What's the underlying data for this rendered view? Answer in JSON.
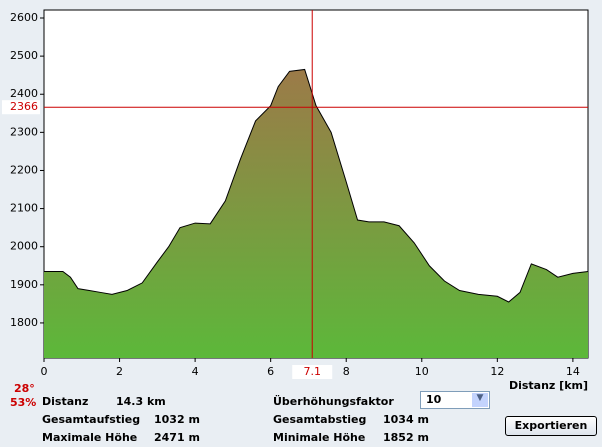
{
  "chart_data": {
    "type": "area",
    "x_label": "Distanz [km]",
    "x": [
      0,
      0.5,
      0.7,
      0.9,
      1.2,
      1.5,
      1.8,
      2.2,
      2.6,
      3.0,
      3.3,
      3.6,
      4.0,
      4.4,
      4.8,
      5.2,
      5.6,
      6.0,
      6.2,
      6.5,
      6.9,
      7.2,
      7.6,
      8.0,
      8.3,
      8.6,
      9.0,
      9.4,
      9.8,
      10.2,
      10.6,
      11.0,
      11.5,
      12.0,
      12.3,
      12.6,
      12.9,
      13.3,
      13.6,
      14.0,
      14.4
    ],
    "values": [
      1935,
      1935,
      1920,
      1890,
      1885,
      1880,
      1875,
      1885,
      1905,
      1960,
      2000,
      2050,
      2062,
      2060,
      2120,
      2230,
      2330,
      2370,
      2420,
      2460,
      2465,
      2370,
      2300,
      2170,
      2070,
      2065,
      2065,
      2055,
      2010,
      1950,
      1910,
      1885,
      1875,
      1870,
      1855,
      1880,
      1955,
      1940,
      1920,
      1930,
      1935
    ],
    "xlim": [
      0,
      14.4
    ],
    "ylim": [
      1708,
      2621
    ],
    "xticks": [
      0,
      2,
      4,
      6,
      8,
      10,
      12,
      14
    ],
    "yticks": [
      1800,
      1900,
      2000,
      2100,
      2200,
      2300,
      2400,
      2500,
      2600
    ],
    "color_top": "#9c7a48",
    "color_bottom": "#5cb83a",
    "cursor": {
      "x": 7.1,
      "y": 2366,
      "color": "#cc0000"
    }
  },
  "panel": {
    "slope": "28°",
    "grade": "53%",
    "stats": [
      [
        "Distanz",
        "14.3 km"
      ],
      [
        "Gesamtaufstieg",
        "1032 m"
      ],
      [
        "Maximale Höhe",
        "2471 m"
      ],
      [
        "Überhöhungsfaktor",
        ""
      ],
      [
        "Gesamtabstieg",
        "1034 m"
      ],
      [
        "Minimale Höhe",
        "1852 m"
      ]
    ],
    "factor": "10",
    "export": "Exportieren"
  }
}
